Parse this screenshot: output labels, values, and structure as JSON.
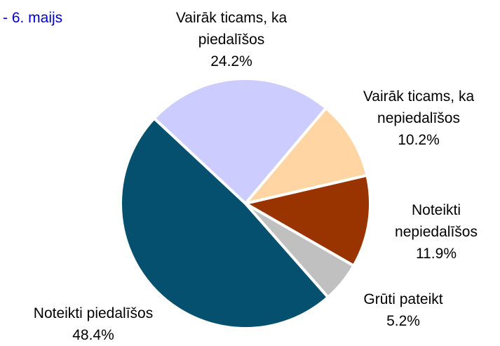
{
  "chart_data": {
    "type": "pie",
    "subtitle": "- 6. maijs",
    "categories": [
      "Vairāk ticams, ka piedalīšos",
      "Vairāk ticams, ka nepiedalīšos",
      "Noteikti nepiedalīšos",
      "Grūti pateikt",
      "Noteikti piedalīšos"
    ],
    "values": [
      24.2,
      10.2,
      11.9,
      5.2,
      48.4
    ],
    "value_labels": [
      "24.2%",
      "10.2%",
      "11.9%",
      "5.2%",
      "48.4%"
    ],
    "colors": [
      "#ccccff",
      "#ffd5a3",
      "#993300",
      "#c0c0c0",
      "#05506f"
    ]
  }
}
